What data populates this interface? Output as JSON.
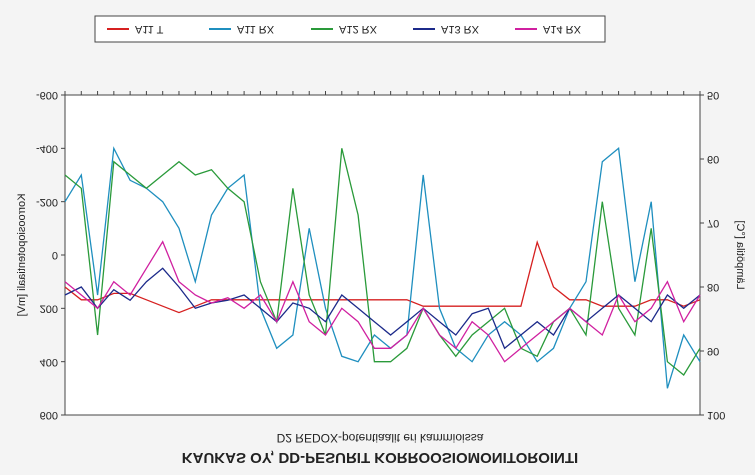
{
  "chart_data": {
    "type": "line",
    "title": "KAUKAS OY, DD-PESURIT KORROOSIOMONITOROINTI",
    "subtitle": "D2 REDOX-potentiaalit eri kammioissa",
    "y_label": "Korroosiopotentiaali [mV]",
    "y2_label": "Lämpötila [°C]",
    "categories": [
      null,
      null,
      null,
      null,
      null,
      null,
      null,
      null,
      null,
      null,
      null,
      null,
      null,
      null,
      null,
      null,
      null,
      null,
      null,
      null,
      null,
      null,
      null,
      null,
      null,
      null,
      null,
      null,
      null,
      null,
      null,
      null,
      null,
      null,
      null,
      null,
      null,
      null,
      null,
      null
    ],
    "ylim": [
      -600,
      600
    ],
    "yticks": [
      -600,
      -400,
      -200,
      0,
      200,
      400,
      600
    ],
    "y2lim": [
      50,
      100
    ],
    "y2ticks": [
      50,
      60,
      70,
      80,
      90,
      100
    ],
    "flipped": true,
    "series": [
      {
        "name": "A11 T",
        "color": "#d62020",
        "axis": "y2",
        "values": [
          80,
          82,
          82,
          81,
          81,
          82,
          83,
          84,
          83,
          82,
          82,
          82,
          82,
          82,
          82,
          82,
          82,
          82,
          82,
          82,
          82,
          82,
          83,
          83,
          83,
          83,
          83,
          83,
          83,
          73,
          80,
          82,
          82,
          83,
          83,
          83,
          82,
          82,
          83,
          82
        ]
      },
      {
        "name": "A11 RX",
        "color": "#1f8fbf",
        "values": [
          -200,
          -300,
          150,
          -400,
          -280,
          -250,
          -200,
          -100,
          100,
          -150,
          -250,
          -300,
          200,
          350,
          300,
          -100,
          200,
          380,
          400,
          300,
          350,
          300,
          -300,
          200,
          350,
          400,
          300,
          250,
          300,
          400,
          350,
          200,
          100,
          -350,
          -400,
          100,
          -200,
          500,
          300,
          400
        ]
      },
      {
        "name": "A12 RX",
        "color": "#2a9a3a",
        "values": [
          -300,
          -250,
          300,
          -350,
          -300,
          -250,
          -300,
          -350,
          -300,
          -320,
          -250,
          -200,
          100,
          250,
          -250,
          150,
          300,
          -400,
          -150,
          400,
          400,
          350,
          200,
          300,
          380,
          300,
          250,
          200,
          350,
          380,
          250,
          200,
          300,
          -200,
          200,
          300,
          -100,
          400,
          450,
          350
        ]
      },
      {
        "name": "A13 RX",
        "color": "#1c2a8a",
        "values": [
          150,
          120,
          200,
          130,
          170,
          100,
          50,
          120,
          200,
          180,
          170,
          150,
          200,
          250,
          180,
          200,
          250,
          150,
          200,
          250,
          300,
          250,
          200,
          250,
          300,
          220,
          200,
          350,
          300,
          250,
          300,
          200,
          250,
          200,
          150,
          200,
          250,
          150,
          200,
          150
        ]
      },
      {
        "name": "A14 RX",
        "color": "#d020a0",
        "values": [
          100,
          150,
          200,
          100,
          150,
          50,
          -50,
          100,
          150,
          180,
          160,
          200,
          150,
          250,
          100,
          250,
          300,
          200,
          250,
          350,
          350,
          300,
          200,
          300,
          350,
          250,
          300,
          400,
          350,
          300,
          250,
          200,
          250,
          300,
          150,
          250,
          200,
          100,
          250,
          150
        ]
      }
    ]
  }
}
